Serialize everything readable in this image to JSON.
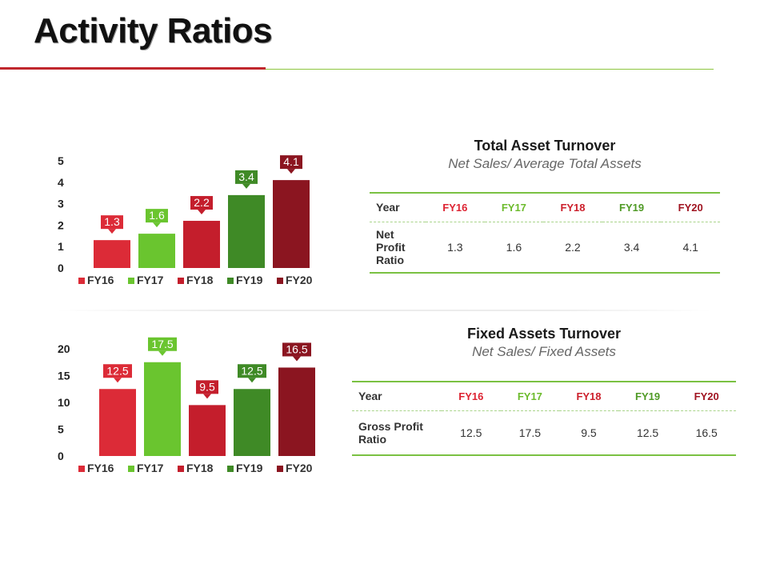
{
  "title": "Activity Ratios",
  "colors": {
    "FY16": "#dc2b37",
    "FY17": "#6ac52f",
    "FY18": "#c41e2c",
    "FY19": "#3f8a26",
    "FY20": "#8b1520",
    "header_FY16": "#dd2332",
    "header_FY17": "#6cbb2c",
    "header_FY18": "#cc1f2b",
    "header_FY19": "#4f9a25",
    "header_FY20": "#a01421"
  },
  "chart_data": [
    {
      "type": "bar",
      "categories": [
        "FY16",
        "FY17",
        "FY18",
        "FY19",
        "FY20"
      ],
      "values": [
        1.3,
        1.6,
        2.2,
        3.4,
        4.1
      ],
      "labels": [
        "1.3",
        "1.6",
        "2.2",
        "3.4",
        "4.1"
      ],
      "yticks": [
        "0",
        "1",
        "2",
        "3",
        "4",
        "5"
      ],
      "ylim": [
        0,
        5
      ],
      "legend": [
        "FY16",
        "FY17",
        "FY18",
        "FY19",
        "FY20"
      ],
      "legend_position": "bottom"
    },
    {
      "type": "bar",
      "categories": [
        "FY16",
        "FY17",
        "FY18",
        "FY19",
        "FY20"
      ],
      "values": [
        12.5,
        17.5,
        9.5,
        12.5,
        16.5
      ],
      "labels": [
        "12.5",
        "17.5",
        "9.5",
        "12.5",
        "16.5"
      ],
      "yticks": [
        "0",
        "5",
        "10",
        "15",
        "20"
      ],
      "ylim": [
        0,
        20
      ],
      "legend": [
        "FY16",
        "FY17",
        "FY18",
        "FY19",
        "FY20"
      ],
      "legend_position": "bottom"
    }
  ],
  "panel1": {
    "title": "Total Asset Turnover",
    "subtitle": "Net Sales/ Average Total Assets",
    "table": {
      "year_label": "Year",
      "years": [
        "FY16",
        "FY17",
        "FY18",
        "FY19",
        "FY20"
      ],
      "row_label_lines": [
        "Net",
        "Profit",
        "Ratio"
      ],
      "values": [
        "1.3",
        "1.6",
        "2.2",
        "3.4",
        "4.1"
      ]
    }
  },
  "panel2": {
    "title": "Fixed Assets Turnover",
    "subtitle": "Net Sales/ Fixed Assets",
    "table": {
      "year_label": "Year",
      "years": [
        "FY16",
        "FY17",
        "FY18",
        "FY19",
        "FY20"
      ],
      "row_label_lines": [
        "Gross Profit",
        "Ratio"
      ],
      "values": [
        "12.5",
        "17.5",
        "9.5",
        "12.5",
        "16.5"
      ]
    }
  }
}
